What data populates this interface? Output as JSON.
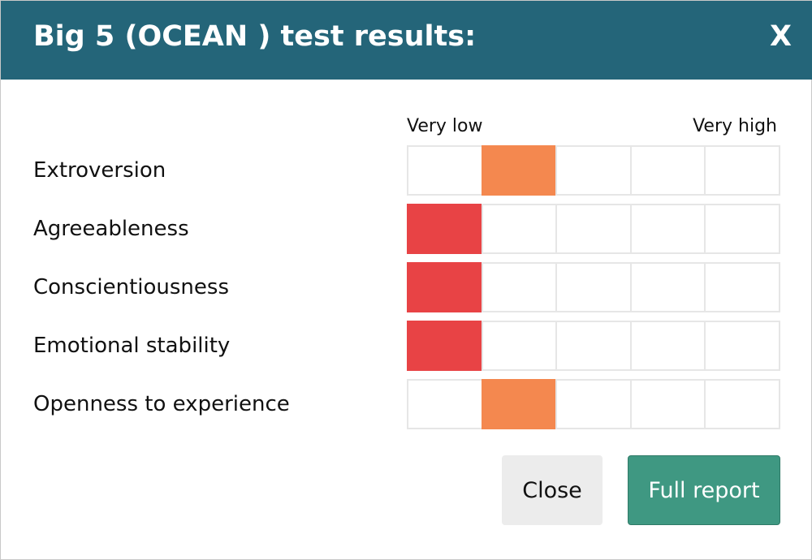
{
  "header": {
    "title": "Big 5 (OCEAN ) test results:",
    "close": "X"
  },
  "scale": {
    "low_label": "Very low",
    "high_label": "Very high",
    "steps": 5
  },
  "traits": [
    {
      "name": "Extroversion",
      "level": 2,
      "color": "#f4884f"
    },
    {
      "name": "Agreeableness",
      "level": 1,
      "color": "#e84345"
    },
    {
      "name": "Conscientiousness",
      "level": 1,
      "color": "#e84345"
    },
    {
      "name": "Emotional stability",
      "level": 1,
      "color": "#e84345"
    },
    {
      "name": "Openness to experience",
      "level": 2,
      "color": "#f4884f"
    }
  ],
  "buttons": {
    "close": "Close",
    "full_report": "Full report"
  }
}
